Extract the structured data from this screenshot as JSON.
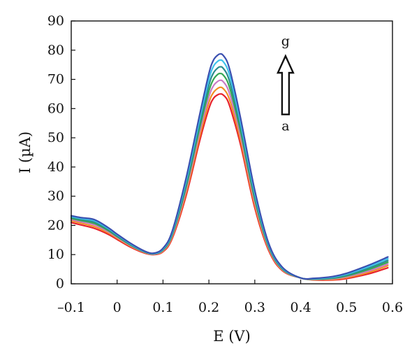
{
  "chart_data": {
    "type": "line",
    "title": "",
    "xlabel": "E (V)",
    "ylabel": "I (µA)",
    "xlim": [
      -0.1,
      0.6
    ],
    "ylim": [
      0,
      90
    ],
    "x_ticks": [
      -0.1,
      0,
      0.1,
      0.2,
      0.3,
      0.4,
      0.5,
      0.6
    ],
    "x_tick_labels": [
      "–0.1",
      "0",
      "0.1",
      "0.2",
      "0.3",
      "0.4",
      "0.5",
      "0.6"
    ],
    "y_ticks": [
      0,
      10,
      20,
      30,
      40,
      50,
      60,
      70,
      80,
      90
    ],
    "y_tick_labels": [
      "0",
      "10",
      "20",
      "30",
      "40",
      "50",
      "60",
      "70",
      "80",
      "90"
    ],
    "grid": false,
    "legend": "none",
    "annotations": [
      {
        "text": "g",
        "x": 0.367,
        "y": 83
      },
      {
        "text": "a",
        "x": 0.367,
        "y": 54
      },
      {
        "type": "arrow",
        "direction": "up",
        "from": [
          0.367,
          58
        ],
        "to": [
          0.367,
          78
        ]
      }
    ],
    "x": [
      -0.1,
      -0.08,
      -0.05,
      -0.02,
      0.0,
      0.03,
      0.06,
      0.08,
      0.1,
      0.12,
      0.15,
      0.18,
      0.2,
      0.21,
      0.22,
      0.225,
      0.23,
      0.24,
      0.25,
      0.27,
      0.3,
      0.33,
      0.36,
      0.4,
      0.43,
      0.47,
      0.5,
      0.55,
      0.59
    ],
    "series": [
      {
        "color": "#e8222a",
        "values": [
          21.0,
          20.2,
          19.0,
          17.0,
          15.2,
          12.5,
          10.5,
          10.0,
          11.0,
          15.5,
          30.0,
          49.0,
          60.0,
          63.5,
          64.8,
          65.0,
          64.8,
          63.0,
          58.5,
          47.0,
          26.0,
          11.5,
          4.5,
          2.0,
          1.3,
          1.3,
          1.8,
          3.5,
          5.5
        ]
      },
      {
        "color": "#f28f24",
        "values": [
          21.6,
          20.8,
          19.6,
          17.5,
          15.6,
          12.8,
          10.7,
          10.1,
          11.2,
          16.0,
          31.0,
          50.5,
          62.0,
          65.5,
          67.0,
          67.3,
          67.0,
          65.0,
          60.5,
          48.5,
          27.0,
          12.0,
          4.7,
          2.0,
          1.4,
          1.5,
          2.1,
          4.0,
          6.2
        ]
      },
      {
        "color": "#c97bc4",
        "values": [
          22.0,
          21.3,
          20.2,
          17.9,
          15.9,
          13.0,
          10.8,
          10.2,
          11.4,
          16.4,
          32.0,
          52.0,
          64.0,
          67.8,
          69.4,
          69.7,
          69.4,
          67.2,
          62.5,
          50.0,
          28.0,
          12.4,
          4.9,
          2.0,
          1.5,
          1.7,
          2.4,
          4.5,
          6.8
        ]
      },
      {
        "color": "#35a853",
        "values": [
          22.4,
          21.7,
          20.7,
          18.3,
          16.2,
          13.2,
          10.9,
          10.3,
          11.6,
          16.8,
          33.0,
          53.5,
          66.0,
          70.0,
          71.8,
          72.0,
          71.7,
          69.4,
          64.5,
          51.5,
          29.0,
          12.8,
          5.1,
          2.0,
          1.6,
          1.9,
          2.7,
          5.0,
          7.4
        ]
      },
      {
        "color": "#2a8c8e",
        "values": [
          22.8,
          22.1,
          21.2,
          18.7,
          16.5,
          13.4,
          11.0,
          10.3,
          11.8,
          17.2,
          34.0,
          55.0,
          68.0,
          72.2,
          74.0,
          74.3,
          74.0,
          71.6,
          66.5,
          53.0,
          30.0,
          13.2,
          5.3,
          2.0,
          1.7,
          2.1,
          3.0,
          5.5,
          8.0
        ]
      },
      {
        "color": "#3fc2ec",
        "values": [
          23.0,
          22.4,
          21.6,
          19.0,
          16.8,
          13.6,
          11.1,
          10.4,
          12.0,
          17.6,
          35.0,
          56.5,
          70.0,
          74.5,
          76.3,
          76.6,
          76.3,
          73.8,
          68.5,
          54.5,
          31.0,
          13.6,
          5.5,
          2.0,
          1.8,
          2.3,
          3.3,
          6.0,
          8.6
        ]
      },
      {
        "color": "#3a4fb0",
        "values": [
          23.3,
          22.7,
          22.0,
          19.3,
          17.0,
          13.8,
          11.2,
          10.5,
          12.2,
          18.0,
          36.0,
          58.0,
          72.0,
          76.6,
          78.4,
          78.7,
          78.4,
          76.0,
          70.5,
          56.0,
          32.0,
          14.0,
          5.7,
          2.0,
          1.9,
          2.5,
          3.6,
          6.5,
          9.2
        ]
      }
    ]
  }
}
